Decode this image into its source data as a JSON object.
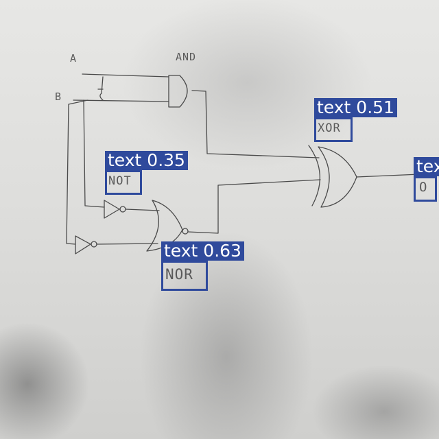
{
  "colors": {
    "detection": "#2f4a9c",
    "ink": "#4a4a4a"
  },
  "handwritten": {
    "input_a": "A",
    "input_b": "B",
    "gate_and": "AND"
  },
  "detections": [
    {
      "class_name": "text",
      "score": "0.35",
      "content": "NOT"
    },
    {
      "class_name": "text",
      "score": "0.63",
      "content": "NOR"
    },
    {
      "class_name": "text",
      "score": "0.51",
      "content": "XOR"
    },
    {
      "class_name": "text",
      "score": "",
      "content": "O"
    }
  ]
}
